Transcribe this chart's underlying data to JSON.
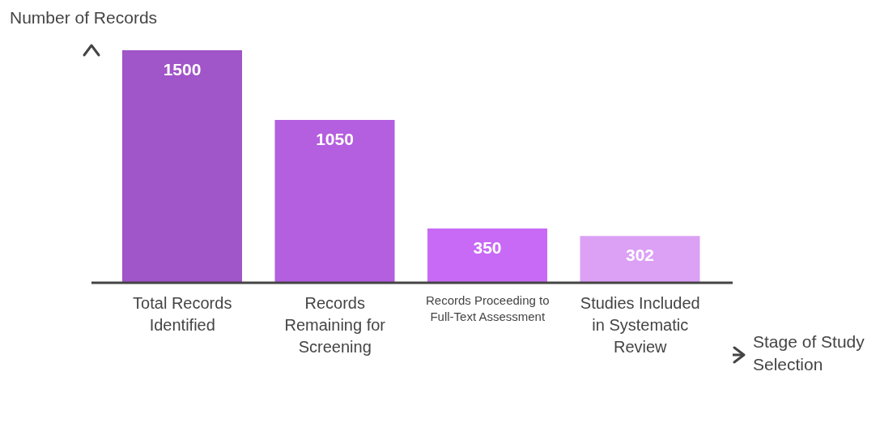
{
  "chart_data": {
    "type": "bar",
    "xlabel": "Stage of Study Selection",
    "ylabel": "Number of Records",
    "categories": [
      "Total Records Identified",
      "Records Remaining for Screening",
      "Records Proceeding to Full-Text Assessment",
      "Studies Included in Systematic Review"
    ],
    "values": [
      1500,
      1050,
      350,
      302
    ],
    "colors": [
      "#a055c8",
      "#b45ee0",
      "#c86af5",
      "#dca0f5"
    ],
    "data_labels": true
  }
}
